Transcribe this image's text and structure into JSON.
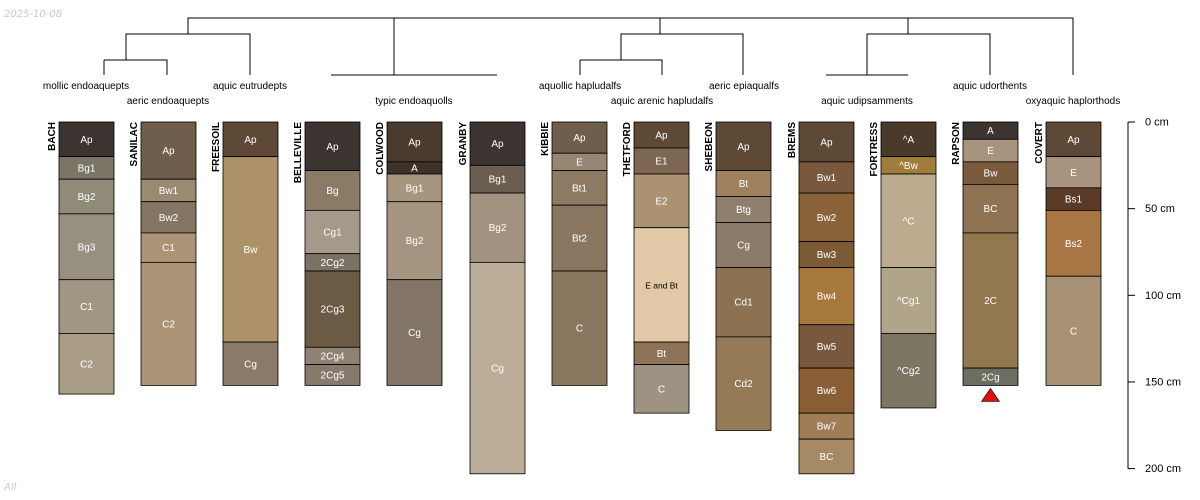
{
  "meta": {
    "date": "2025-10-08",
    "footer": "All"
  },
  "depth_axis": {
    "unit": "cm",
    "max": 200,
    "ticks": [
      {
        "value": 0,
        "label": "0 cm"
      },
      {
        "value": 50,
        "label": "50 cm"
      },
      {
        "value": 100,
        "label": "100 cm"
      },
      {
        "value": 150,
        "label": "150 cm"
      },
      {
        "value": 200,
        "label": "200 cm"
      }
    ]
  },
  "dendrogram": {
    "label_tier1": [
      "mollic endoaquepts",
      "aquic eutrudepts",
      "aquollic hapludalfs",
      "aeric epiaqualfs",
      "aquic udorthents"
    ],
    "label_tier2": [
      "aeric endoaquepts",
      "typic endoaquolls",
      "aquic arenic hapludalfs",
      "aquic udipsamments",
      "oxyaquic haplorthods"
    ]
  },
  "profiles": [
    {
      "name": "BACH",
      "horizons": [
        {
          "name": "Ap",
          "top": 0,
          "bottom": 20,
          "color": "#3b3430"
        },
        {
          "name": "Bg1",
          "top": 20,
          "bottom": 33,
          "color": "#7b7568"
        },
        {
          "name": "Bg2",
          "top": 33,
          "bottom": 53,
          "color": "#908a79"
        },
        {
          "name": "Bg3",
          "top": 53,
          "bottom": 91,
          "color": "#979080"
        },
        {
          "name": "C1",
          "top": 91,
          "bottom": 122,
          "color": "#a19684"
        },
        {
          "name": "C2",
          "top": 122,
          "bottom": 157,
          "color": "#aa9d88"
        }
      ]
    },
    {
      "name": "SANILAC",
      "horizons": [
        {
          "name": "Ap",
          "top": 0,
          "bottom": 33,
          "color": "#705e4d"
        },
        {
          "name": "Bw1",
          "top": 33,
          "bottom": 46,
          "color": "#9a8a72"
        },
        {
          "name": "Bw2",
          "top": 46,
          "bottom": 64,
          "color": "#847663"
        },
        {
          "name": "C1",
          "top": 64,
          "bottom": 81,
          "color": "#ab9475"
        },
        {
          "name": "C2",
          "top": 81,
          "bottom": 152,
          "color": "#ab9375"
        }
      ]
    },
    {
      "name": "FREESOIL",
      "horizons": [
        {
          "name": "Ap",
          "top": 0,
          "bottom": 20,
          "color": "#5e4937"
        },
        {
          "name": "Bw",
          "top": 20,
          "bottom": 127,
          "color": "#ad9169"
        },
        {
          "name": "Cg",
          "top": 127,
          "bottom": 152,
          "color": "#8a7a68"
        }
      ]
    },
    {
      "name": "BELLEVILLE",
      "horizons": [
        {
          "name": "Ap",
          "top": 0,
          "bottom": 28,
          "color": "#3b3430"
        },
        {
          "name": "Bg",
          "top": 28,
          "bottom": 51,
          "color": "#8a7a66"
        },
        {
          "name": "Cg1",
          "top": 51,
          "bottom": 76,
          "color": "#a4998a"
        },
        {
          "name": "2Cg2",
          "top": 76,
          "bottom": 86,
          "color": "#7b7264"
        },
        {
          "name": "2Cg3",
          "top": 86,
          "bottom": 130,
          "color": "#6b5b45"
        },
        {
          "name": "2Cg4",
          "top": 130,
          "bottom": 140,
          "color": "#8f8273"
        },
        {
          "name": "2Cg5",
          "top": 140,
          "bottom": 152,
          "color": "#857a6c"
        }
      ]
    },
    {
      "name": "COLWOOD",
      "horizons": [
        {
          "name": "Ap",
          "top": 0,
          "bottom": 23,
          "color": "#4a3b2e"
        },
        {
          "name": "A",
          "top": 23,
          "bottom": 30,
          "color": "#3e3228"
        },
        {
          "name": "Bg1",
          "top": 30,
          "bottom": 46,
          "color": "#a6967f"
        },
        {
          "name": "Bg2",
          "top": 46,
          "bottom": 91,
          "color": "#a59580"
        },
        {
          "name": "Cg",
          "top": 91,
          "bottom": 152,
          "color": "#827567"
        }
      ]
    },
    {
      "name": "GRANBY",
      "horizons": [
        {
          "name": "Ap",
          "top": 0,
          "bottom": 25,
          "color": "#3b3430"
        },
        {
          "name": "Bg1",
          "top": 25,
          "bottom": 41,
          "color": "#6a5e50"
        },
        {
          "name": "Bg2",
          "top": 41,
          "bottom": 81,
          "color": "#a29380"
        },
        {
          "name": "Cg",
          "top": 81,
          "bottom": 203,
          "color": "#bcad98"
        }
      ]
    },
    {
      "name": "KIBBIE",
      "horizons": [
        {
          "name": "Ap",
          "top": 0,
          "bottom": 18,
          "color": "#705e4d"
        },
        {
          "name": "E",
          "top": 18,
          "bottom": 28,
          "color": "#958772"
        },
        {
          "name": "Bt1",
          "top": 28,
          "bottom": 48,
          "color": "#8e7a63"
        },
        {
          "name": "Bt2",
          "top": 48,
          "bottom": 86,
          "color": "#8a7560"
        },
        {
          "name": "C",
          "top": 86,
          "bottom": 152,
          "color": "#8a765f"
        }
      ]
    },
    {
      "name": "THETFORD",
      "horizons": [
        {
          "name": "Ap",
          "top": 0,
          "bottom": 15,
          "color": "#5e4937"
        },
        {
          "name": "E1",
          "top": 15,
          "bottom": 30,
          "color": "#7d6652"
        },
        {
          "name": "E2",
          "top": 30,
          "bottom": 61,
          "color": "#ab9270"
        },
        {
          "name": "E and Bt",
          "top": 61,
          "bottom": 127,
          "color": "#e2c8a6"
        },
        {
          "name": "Bt",
          "top": 127,
          "bottom": 140,
          "color": "#8f7358"
        },
        {
          "name": "C",
          "top": 140,
          "bottom": 168,
          "color": "#9e9283"
        }
      ]
    },
    {
      "name": "SHEBEON",
      "horizons": [
        {
          "name": "Ap",
          "top": 0,
          "bottom": 28,
          "color": "#5e4937"
        },
        {
          "name": "Bt",
          "top": 28,
          "bottom": 43,
          "color": "#9e8260"
        },
        {
          "name": "Btg",
          "top": 43,
          "bottom": 58,
          "color": "#8e7f6f"
        },
        {
          "name": "Cg",
          "top": 58,
          "bottom": 84,
          "color": "#8b7b68"
        },
        {
          "name": "Cd1",
          "top": 84,
          "bottom": 124,
          "color": "#8c7252"
        },
        {
          "name": "Cd2",
          "top": 124,
          "bottom": 178,
          "color": "#957a58"
        }
      ]
    },
    {
      "name": "BREMS",
      "horizons": [
        {
          "name": "Ap",
          "top": 0,
          "bottom": 23,
          "color": "#5e4937"
        },
        {
          "name": "Bw1",
          "top": 23,
          "bottom": 41,
          "color": "#7a583d"
        },
        {
          "name": "Bw2",
          "top": 41,
          "bottom": 69,
          "color": "#8a6238"
        },
        {
          "name": "Bw3",
          "top": 69,
          "bottom": 84,
          "color": "#7d5a36"
        },
        {
          "name": "Bw4",
          "top": 84,
          "bottom": 117,
          "color": "#a6783c"
        },
        {
          "name": "Bw5",
          "top": 117,
          "bottom": 142,
          "color": "#7a583d"
        },
        {
          "name": "Bw6",
          "top": 142,
          "bottom": 168,
          "color": "#8a5e34"
        },
        {
          "name": "Bw7",
          "top": 168,
          "bottom": 183,
          "color": "#9e7d57"
        },
        {
          "name": "BC",
          "top": 183,
          "bottom": 203,
          "color": "#a68a66"
        }
      ]
    },
    {
      "name": "FORTRESS",
      "horizons": [
        {
          "name": "^A",
          "top": 0,
          "bottom": 20,
          "color": "#4a3a2c"
        },
        {
          "name": "^Bw",
          "top": 20,
          "bottom": 30,
          "color": "#a07d3a"
        },
        {
          "name": "^C",
          "top": 30,
          "bottom": 84,
          "color": "#bcab8f"
        },
        {
          "name": "^Cg1",
          "top": 84,
          "bottom": 122,
          "color": "#b1a589"
        },
        {
          "name": "^Cg2",
          "top": 122,
          "bottom": 165,
          "color": "#7c7663"
        }
      ]
    },
    {
      "name": "RAPSON",
      "horizons": [
        {
          "name": "A",
          "top": 0,
          "bottom": 10,
          "color": "#3b3430"
        },
        {
          "name": "E",
          "top": 10,
          "bottom": 23,
          "color": "#a8937e"
        },
        {
          "name": "Bw",
          "top": 23,
          "bottom": 36,
          "color": "#7a5a3d"
        },
        {
          "name": "BC",
          "top": 36,
          "bottom": 64,
          "color": "#8f7353"
        },
        {
          "name": "2C",
          "top": 64,
          "bottom": 142,
          "color": "#92784f"
        },
        {
          "name": "2Cg",
          "top": 142,
          "bottom": 152,
          "color": "#6b6f62"
        }
      ]
    },
    {
      "name": "COVERT",
      "horizons": [
        {
          "name": "Ap",
          "top": 0,
          "bottom": 20,
          "color": "#5e4937"
        },
        {
          "name": "E",
          "top": 20,
          "bottom": 38,
          "color": "#a8937e"
        },
        {
          "name": "Bs1",
          "top": 38,
          "bottom": 51,
          "color": "#5c3a28"
        },
        {
          "name": "Bs2",
          "top": 51,
          "bottom": 89,
          "color": "#a87545"
        },
        {
          "name": "C",
          "top": 89,
          "bottom": 152,
          "color": "#a89276"
        }
      ]
    }
  ]
}
